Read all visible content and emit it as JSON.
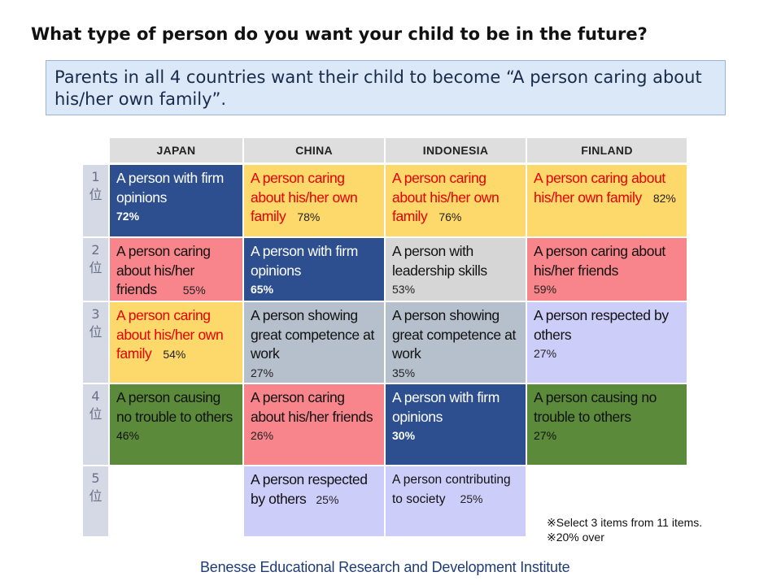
{
  "title": "What type of person do you want your child to be in the future?",
  "callout": "Parents in all 4 countries want their child to become “A person caring about his/her own family”.",
  "columns": [
    "JAPAN",
    "CHINA",
    "INDONESIA",
    "FINLAND"
  ],
  "ranks": [
    {
      "num": "1",
      "suffix": "位"
    },
    {
      "num": "2",
      "suffix": "位"
    },
    {
      "num": "3",
      "suffix": "位"
    },
    {
      "num": "4",
      "suffix": "位"
    },
    {
      "num": "5",
      "suffix": "位"
    }
  ],
  "rows": [
    [
      {
        "text": "A person with firm opinions",
        "pct": "72%"
      },
      {
        "text": "A person caring about his/her own family",
        "pct": "78%"
      },
      {
        "text": "A person caring about his/her own family",
        "pct": "76%"
      },
      {
        "text": "A person caring about his/her own family",
        "pct": "82%"
      }
    ],
    [
      {
        "text": "A person caring about his/her friends",
        "pct": "55%"
      },
      {
        "text": "A person with firm opinions",
        "pct": "65%"
      },
      {
        "text": "A person with leadership skills",
        "pct": "53%"
      },
      {
        "text": "A person caring about his/her friends",
        "pct": "59%"
      }
    ],
    [
      {
        "text": "A person caring about his/her own family",
        "pct": "54%"
      },
      {
        "text": "A person showing great competence at work",
        "pct": "27%"
      },
      {
        "text": "A person showing great competence at work",
        "pct": "35%"
      },
      {
        "text": "A person respected by others",
        "pct": "27%"
      }
    ],
    [
      {
        "text": "A person causing no trouble to others",
        "pct": "46%"
      },
      {
        "text": "A person caring about his/her friends",
        "pct": "26%"
      },
      {
        "text": "A person with firm opinions",
        "pct": "30%"
      },
      {
        "text": "A person causing no trouble to others",
        "pct": "27%"
      }
    ],
    [
      {
        "text": "",
        "pct": ""
      },
      {
        "text": "A person respected by others",
        "pct": "25%"
      },
      {
        "text": "A person contributing to society",
        "pct": "25%"
      },
      {
        "text": "",
        "pct": ""
      }
    ]
  ],
  "colors": {
    "navy": "#2d4f8f",
    "yellow": "#fdd86a",
    "pink": "#f8858b",
    "gray": "#d6d6d6",
    "slate": "#b6bfcc",
    "lavender": "#cdcdf9",
    "green": "#5b8a3a",
    "red_text": "#e60000"
  },
  "notes": [
    "※Select 3 items from 11 items.",
    "※20% over"
  ],
  "footer": "Benesse Educational Research and Development Institute"
}
